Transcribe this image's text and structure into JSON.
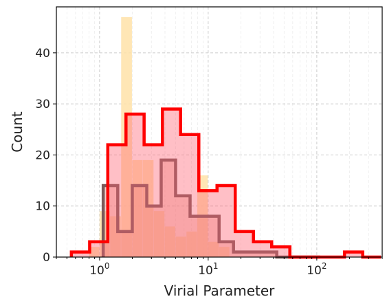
{
  "chart_data": {
    "type": "histogram",
    "xlabel": "Virial Parameter",
    "ylabel": "Count",
    "x_scale": "log",
    "xlim": [
      0.4,
      400
    ],
    "ylim": [
      0,
      49
    ],
    "grid": true,
    "x_ticks": [
      {
        "value": 1,
        "base": "10",
        "exp": "0"
      },
      {
        "value": 10,
        "base": "10",
        "exp": "1"
      },
      {
        "value": 100,
        "base": "10",
        "exp": "2"
      }
    ],
    "y_ticks": [
      0,
      10,
      20,
      30,
      40
    ],
    "series": [
      {
        "style": "bars",
        "color": "#ffe2a8",
        "opacity": 0.85,
        "bins": [
          {
            "x0": 0.8,
            "x1": 1.0,
            "y": 2
          },
          {
            "x0": 1.0,
            "x1": 1.25,
            "y": 9
          },
          {
            "x0": 1.25,
            "x1": 1.58,
            "y": 8
          },
          {
            "x0": 1.58,
            "x1": 2.0,
            "y": 47
          },
          {
            "x0": 2.0,
            "x1": 2.51,
            "y": 19
          },
          {
            "x0": 2.51,
            "x1": 3.16,
            "y": 19
          },
          {
            "x0": 3.16,
            "x1": 3.98,
            "y": 9
          },
          {
            "x0": 3.98,
            "x1": 5.01,
            "y": 6
          },
          {
            "x0": 5.01,
            "x1": 6.31,
            "y": 4
          },
          {
            "x0": 6.31,
            "x1": 7.94,
            "y": 5
          },
          {
            "x0": 7.94,
            "x1": 10.0,
            "y": 16
          },
          {
            "x0": 10.0,
            "x1": 12.6,
            "y": 3
          },
          {
            "x0": 12.6,
            "x1": 15.8,
            "y": 2
          }
        ]
      },
      {
        "style": "step-filled",
        "color": "#7a5a5a",
        "fill": "#e8a090",
        "fill_opacity": 0.45,
        "edges": [
          1.08,
          1.47,
          2.0,
          2.72,
          3.69,
          5.01,
          6.81,
          9.25,
          12.6,
          17.1,
          23.2,
          31.5,
          42.8,
          58.2,
          79.1,
          107.5
        ],
        "counts": [
          14,
          5,
          14,
          10,
          19,
          12,
          8,
          8,
          3,
          1,
          1,
          1,
          0,
          0,
          0
        ]
      },
      {
        "style": "step-filled",
        "color": "#ff0000",
        "fill": "#ff6070",
        "fill_opacity": 0.4,
        "edges": [
          0.55,
          0.81,
          1.19,
          1.75,
          2.57,
          3.79,
          5.57,
          8.2,
          12.06,
          17.74,
          26.1,
          38.4,
          56.5,
          83.1,
          122.3,
          179.9,
          264.7,
          389.4
        ],
        "counts": [
          1,
          3,
          22,
          28,
          22,
          29,
          24,
          13,
          14,
          5,
          3,
          2,
          0,
          0,
          0,
          1,
          0
        ]
      }
    ]
  }
}
